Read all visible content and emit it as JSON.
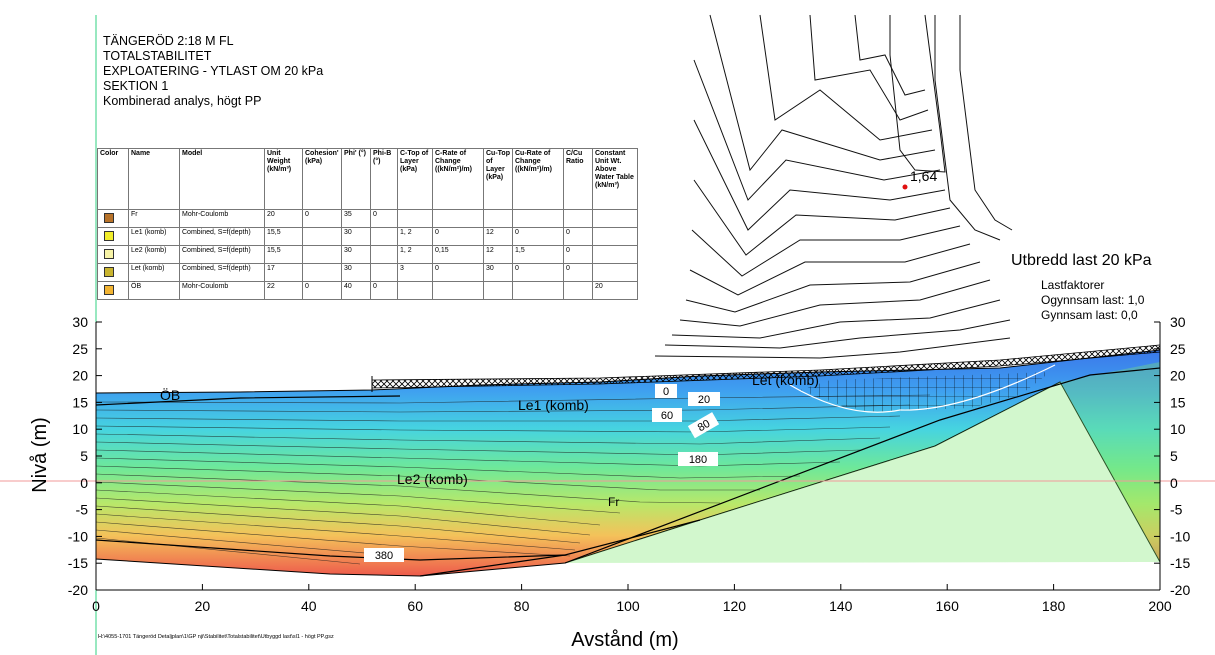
{
  "title_lines": [
    "TÄNGERÖD 2:18 M FL",
    "TOTALSTABILITET",
    "EXPLOATERING - YTLAST OM 20 kPa",
    "SEKTION 1",
    "Kombinerad analys, högt PP"
  ],
  "table": {
    "headers": [
      "Color",
      "Name",
      "Model",
      "Unit Weight (kN/m³)",
      "Cohesion' (kPa)",
      "Phi' (°)",
      "Phi-B (°)",
      "C-Top of Layer (kPa)",
      "C-Rate of Change ((kN/m²)/m)",
      "Cu-Top of Layer (kPa)",
      "Cu-Rate of Change ((kN/m²)/m)",
      "C/Cu Ratio",
      "Constant Unit Wt. Above Water Table (kN/m³)"
    ],
    "rows": [
      {
        "color": "#b8732a",
        "cells": [
          "Fr",
          "Mohr-Coulomb",
          "20",
          "0",
          "35",
          "0",
          "",
          "",
          "",
          "",
          "",
          ""
        ]
      },
      {
        "color": "#f2ee2a",
        "cells": [
          "Le1 (komb)",
          "Combined, S=f(depth)",
          "15,5",
          "",
          "30",
          "",
          "1, 2",
          "0",
          "12",
          "0",
          "0",
          ""
        ]
      },
      {
        "color": "#f7f3a6",
        "cells": [
          "Le2 (komb)",
          "Combined, S=f(depth)",
          "15,5",
          "",
          "30",
          "",
          "1, 2",
          "0,15",
          "12",
          "1,5",
          "0",
          ""
        ]
      },
      {
        "color": "#c9b42e",
        "cells": [
          "Let (komb)",
          "Combined, S=f(depth)",
          "17",
          "",
          "30",
          "",
          "3",
          "0",
          "30",
          "0",
          "0",
          ""
        ]
      },
      {
        "color": "#f2b432",
        "cells": [
          "ÖB",
          "Mohr-Coulomb",
          "22",
          "0",
          "40",
          "0",
          "",
          "",
          "",
          "",
          "",
          "20"
        ]
      }
    ]
  },
  "chart": {
    "xlabel": "Avstånd (m)",
    "ylabel": "Nivå (m)",
    "x_ticks": [
      0,
      20,
      40,
      60,
      80,
      100,
      120,
      140,
      160,
      180,
      200
    ],
    "y_ticks": [
      30,
      25,
      20,
      15,
      10,
      5,
      0,
      -5,
      -10,
      -15,
      -20
    ],
    "xlim": [
      0,
      200
    ],
    "ylim": [
      -20,
      30
    ]
  },
  "labels": {
    "fos": "1,64",
    "load_title": "Utbredd last 20 kPa",
    "load_factors": "Lastfaktorer",
    "unfavorable": "Ogynnsam last: 1,0",
    "favorable": "Gynnsam last: 0,0",
    "layer_ob": "ÖB",
    "layer_le1": "Le1 (komb)",
    "layer_le2": "Le2 (komb)",
    "layer_let": "Let (komb)",
    "layer_fr": "Fr"
  },
  "contour_labels": [
    "0",
    "20",
    "60",
    "80",
    "180",
    "380"
  ],
  "file_path": "H:\\4055-1701 Tängeröd Detaljplan\\1\\GP nji\\Stabilitet\\Totalstabilitet\\Utbyggd last\\sl1 - högt PP.gsz",
  "colors": {
    "contour_shallow": "#3a7de6",
    "contour_deep": "#ef5a4a",
    "fos_point": "#e01010"
  }
}
